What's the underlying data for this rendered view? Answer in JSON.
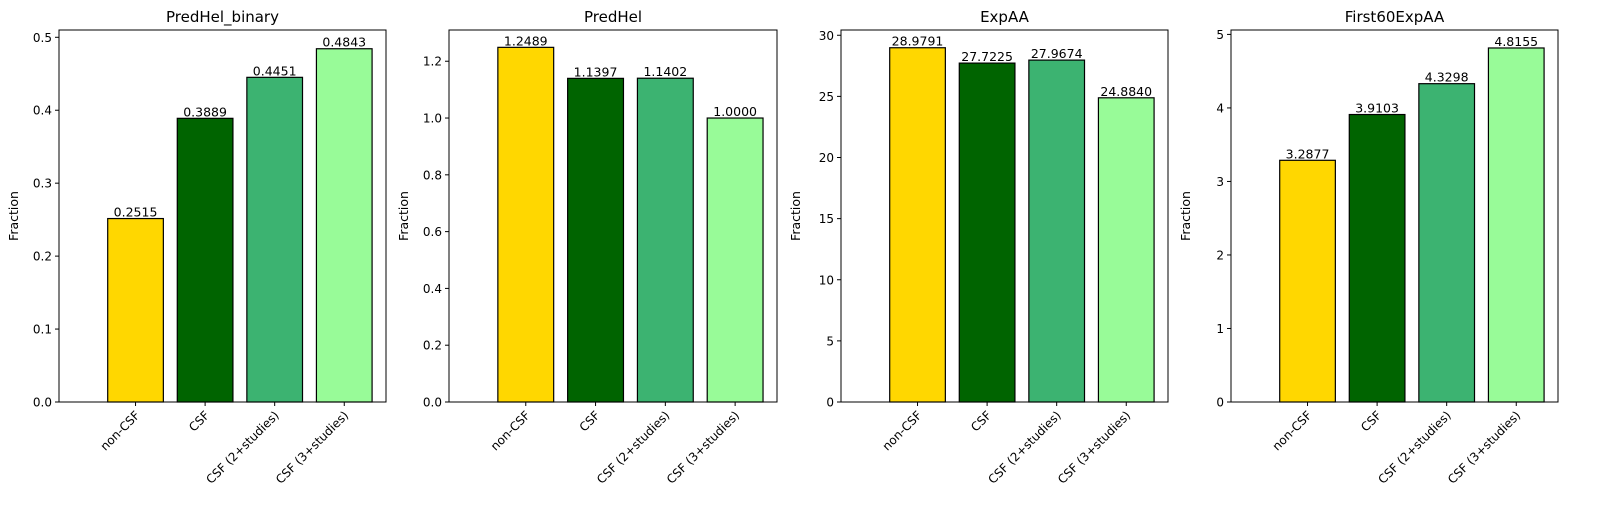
{
  "chart_data": [
    {
      "type": "bar",
      "title": "PredHel_binary",
      "xlabel": "",
      "ylabel": "Fraction",
      "categories": [
        "non-CSF",
        "CSF",
        "CSF (2+studies)",
        "CSF (3+studies)"
      ],
      "values": [
        0.2515,
        0.3889,
        0.4451,
        0.4843
      ],
      "value_labels": [
        "0.2515",
        "0.3889",
        "0.4451",
        "0.4843"
      ],
      "ylim": [
        0,
        0.51
      ],
      "yticks": [
        0.0,
        0.1,
        0.2,
        0.3,
        0.4,
        0.5
      ],
      "ytick_labels": [
        "0.0",
        "0.1",
        "0.2",
        "0.3",
        "0.4",
        "0.5"
      ],
      "grid": false
    },
    {
      "type": "bar",
      "title": "PredHel",
      "xlabel": "",
      "ylabel": "Fraction",
      "categories": [
        "non-CSF",
        "CSF",
        "CSF (2+studies)",
        "CSF (3+studies)"
      ],
      "values": [
        1.2489,
        1.1397,
        1.1402,
        1.0
      ],
      "value_labels": [
        "1.2489",
        "1.1397",
        "1.1402",
        "1.0000"
      ],
      "ylim": [
        0,
        1.31
      ],
      "yticks": [
        0.0,
        0.2,
        0.4,
        0.6,
        0.8,
        1.0,
        1.2
      ],
      "ytick_labels": [
        "0.0",
        "0.2",
        "0.4",
        "0.6",
        "0.8",
        "1.0",
        "1.2"
      ],
      "grid": false
    },
    {
      "type": "bar",
      "title": "ExpAA",
      "xlabel": "",
      "ylabel": "Fraction",
      "categories": [
        "non-CSF",
        "CSF",
        "CSF (2+studies)",
        "CSF (3+studies)"
      ],
      "values": [
        28.9791,
        27.7225,
        27.9674,
        24.884
      ],
      "value_labels": [
        "28.9791",
        "27.7225",
        "27.9674",
        "24.8840"
      ],
      "ylim": [
        0,
        30.43
      ],
      "yticks": [
        0,
        5,
        10,
        15,
        20,
        25,
        30
      ],
      "ytick_labels": [
        "0",
        "5",
        "10",
        "15",
        "20",
        "25",
        "30"
      ],
      "grid": false
    },
    {
      "type": "bar",
      "title": "First60ExpAA",
      "xlabel": "",
      "ylabel": "Fraction",
      "categories": [
        "non-CSF",
        "CSF",
        "CSF (2+studies)",
        "CSF (3+studies)"
      ],
      "values": [
        3.2877,
        3.9103,
        4.3298,
        4.8155
      ],
      "value_labels": [
        "3.2877",
        "3.9103",
        "4.3298",
        "4.8155"
      ],
      "ylim": [
        0,
        5.06
      ],
      "yticks": [
        0,
        1,
        2,
        3,
        4,
        5
      ],
      "ytick_labels": [
        "0",
        "1",
        "2",
        "3",
        "4",
        "5"
      ],
      "grid": false
    }
  ],
  "colors": {
    "bars": [
      "#ffd700",
      "#006400",
      "#3cb371",
      "#98fb98"
    ],
    "bar_edge": "#000000",
    "axes": "#000000",
    "background": "#ffffff"
  }
}
